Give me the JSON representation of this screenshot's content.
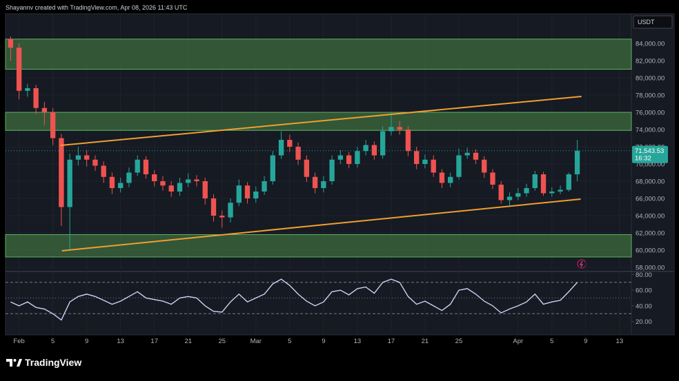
{
  "chart_data": {
    "type": "candlestick",
    "header": "Shayannv created with TradingView.com, Apr 08, 2026 11:43 UTC",
    "currency": "USDT",
    "brand": "TradingView",
    "x": [
      -1,
      0,
      1,
      2,
      3,
      4,
      5,
      6,
      7,
      8,
      9,
      10,
      11,
      12,
      13,
      14,
      15,
      16,
      17,
      18,
      19,
      20,
      21,
      22,
      23,
      24,
      25,
      26,
      27,
      28,
      29,
      30,
      31,
      32,
      33,
      34,
      35,
      36,
      37,
      38,
      39,
      40,
      41,
      42,
      43,
      44,
      45,
      46,
      47,
      48,
      49,
      50,
      51,
      52,
      53,
      54,
      55,
      56,
      57,
      58,
      59,
      60,
      61,
      62,
      63,
      64,
      65,
      66
    ],
    "xlim": [
      -1.6,
      72.4
    ],
    "xticks": [
      {
        "value": 0,
        "label": "Feb"
      },
      {
        "value": 4,
        "label": "5"
      },
      {
        "value": 8,
        "label": "9"
      },
      {
        "value": 12,
        "label": "13"
      },
      {
        "value": 16,
        "label": "17"
      },
      {
        "value": 20,
        "label": "21"
      },
      {
        "value": 24,
        "label": "25"
      },
      {
        "value": 28,
        "label": "Mar"
      },
      {
        "value": 32,
        "label": "5"
      },
      {
        "value": 36,
        "label": "9"
      },
      {
        "value": 40,
        "label": "13"
      },
      {
        "value": 44,
        "label": "17"
      },
      {
        "value": 48,
        "label": "21"
      },
      {
        "value": 52,
        "label": "25"
      },
      {
        "value": 59,
        "label": "Apr"
      },
      {
        "value": 63,
        "label": "5"
      },
      {
        "value": 67,
        "label": "9"
      },
      {
        "value": 71,
        "label": "13"
      }
    ],
    "ylim": [
      57600,
      87440
    ],
    "yticks": [
      {
        "value": 58000,
        "label": "58,000.00"
      },
      {
        "value": 60000,
        "label": "60,000.00"
      },
      {
        "value": 62000,
        "label": "62,000.00"
      },
      {
        "value": 64000,
        "label": "64,000.00"
      },
      {
        "value": 66000,
        "label": "66,000.00"
      },
      {
        "value": 68000,
        "label": "68,000.00"
      },
      {
        "value": 70000,
        "label": "70,000.00"
      },
      {
        "value": 72000,
        "label": "72,000.00"
      },
      {
        "value": 74000,
        "label": "74,000.00"
      },
      {
        "value": 76000,
        "label": "76,000.00"
      },
      {
        "value": 78000,
        "label": "78,000.00"
      },
      {
        "value": 80000,
        "label": "80,000.00"
      },
      {
        "value": 82000,
        "label": "82,000.00"
      },
      {
        "value": 84000,
        "label": "84,000.00"
      }
    ],
    "open": [
      84500,
      83500,
      78500,
      78800,
      76500,
      76000,
      73000,
      65000,
      70500,
      71000,
      70500,
      69800,
      68500,
      67200,
      67800,
      69000,
      70500,
      68800,
      68000,
      67500,
      66800,
      67800,
      68200,
      68000,
      66000,
      64000,
      63800,
      65500,
      67500,
      66000,
      66800,
      68000,
      71000,
      72800,
      72000,
      70500,
      68500,
      67200,
      68000,
      70500,
      71000,
      70000,
      71500,
      72200,
      71000,
      73800,
      74300,
      74000,
      71500,
      70000,
      70500,
      69000,
      67800,
      68500,
      71000,
      71300,
      70500,
      69000,
      67600,
      65800,
      66200,
      66600,
      67200,
      68800,
      66600,
      66800,
      67000,
      68800
    ],
    "high": [
      84800,
      84000,
      79300,
      79200,
      77200,
      76500,
      73500,
      71200,
      72000,
      71600,
      71000,
      70300,
      69000,
      68400,
      69600,
      71000,
      70900,
      69300,
      68600,
      68000,
      68400,
      68900,
      68700,
      68400,
      66500,
      64600,
      66000,
      68200,
      67900,
      67400,
      68600,
      71500,
      73800,
      73400,
      72500,
      71000,
      69000,
      68600,
      71000,
      71600,
      71400,
      72000,
      72800,
      72600,
      74400,
      76000,
      75000,
      74400,
      72000,
      71100,
      71000,
      69400,
      69000,
      71800,
      71900,
      71700,
      70900,
      69400,
      68000,
      66700,
      67200,
      67700,
      69200,
      69100,
      67300,
      67500,
      69000,
      72800
    ],
    "low": [
      82000,
      77500,
      77800,
      75800,
      74500,
      72200,
      62800,
      60000,
      69800,
      69700,
      69200,
      67800,
      66500,
      66700,
      67300,
      68600,
      68300,
      67400,
      66900,
      66200,
      66300,
      67300,
      67400,
      65300,
      63300,
      62600,
      63200,
      65100,
      65400,
      65500,
      66400,
      67600,
      70600,
      71400,
      69900,
      67900,
      66600,
      66700,
      67600,
      70000,
      69500,
      69600,
      71000,
      70500,
      70600,
      73300,
      73400,
      70900,
      69400,
      69500,
      68500,
      67200,
      67300,
      68200,
      70600,
      70000,
      68400,
      67100,
      65400,
      65200,
      65800,
      66200,
      66900,
      66300,
      66200,
      66500,
      66800,
      68000
    ],
    "close": [
      83500,
      78500,
      78800,
      76500,
      76000,
      73000,
      65000,
      70500,
      71000,
      70500,
      69800,
      68500,
      67200,
      67800,
      69000,
      70500,
      68800,
      68000,
      67500,
      66800,
      67800,
      68200,
      68000,
      66000,
      64000,
      63800,
      65500,
      67500,
      66000,
      66800,
      68000,
      71000,
      72800,
      72000,
      70500,
      68500,
      67200,
      68000,
      70500,
      71000,
      70000,
      71500,
      72200,
      71000,
      73800,
      74300,
      74000,
      71500,
      70000,
      70500,
      69000,
      67800,
      68500,
      71000,
      71300,
      70500,
      69000,
      67600,
      65800,
      66200,
      66600,
      67200,
      68800,
      66600,
      66800,
      67000,
      68800,
      71543.53
    ],
    "up_color": "#26a69a",
    "down_color": "#ef5350",
    "zones": [
      {
        "low": 81000,
        "high": 84500
      },
      {
        "low": 73900,
        "high": 76000
      },
      {
        "low": 59200,
        "high": 61800
      }
    ],
    "zone_color": "#3d6b3f",
    "trendlines": [
      {
        "x": [
          4.9,
          66.5
        ],
        "y": [
          72160,
          77840
        ]
      },
      {
        "x": [
          5.06,
          66.4
        ],
        "y": [
          59920,
          65920
        ]
      }
    ],
    "trendline_color": "#f0a030",
    "last_price": {
      "value": 71543.53,
      "label": "71,543.53"
    },
    "countdown": "16:32",
    "rsi": {
      "values": [
        45,
        40,
        45,
        38,
        36,
        30,
        22,
        45,
        52,
        55,
        52,
        47,
        42,
        46,
        52,
        58,
        50,
        48,
        46,
        42,
        50,
        52,
        50,
        40,
        33,
        32,
        45,
        55,
        45,
        50,
        55,
        68,
        74,
        66,
        55,
        46,
        40,
        45,
        58,
        60,
        54,
        62,
        64,
        56,
        70,
        74,
        70,
        52,
        42,
        46,
        40,
        34,
        42,
        60,
        62,
        55,
        46,
        40,
        31,
        36,
        40,
        45,
        55,
        42,
        45,
        47,
        58,
        70
      ],
      "color": "#c9d6f5",
      "ylim": [
        3,
        83
      ],
      "yticks": [
        {
          "value": 20,
          "label": "20.00"
        },
        {
          "value": 40,
          "label": "40.00"
        },
        {
          "value": 60,
          "label": "60.00"
        },
        {
          "value": 80,
          "label": "80.00"
        }
      ],
      "levels": [
        70,
        50,
        30
      ]
    }
  }
}
